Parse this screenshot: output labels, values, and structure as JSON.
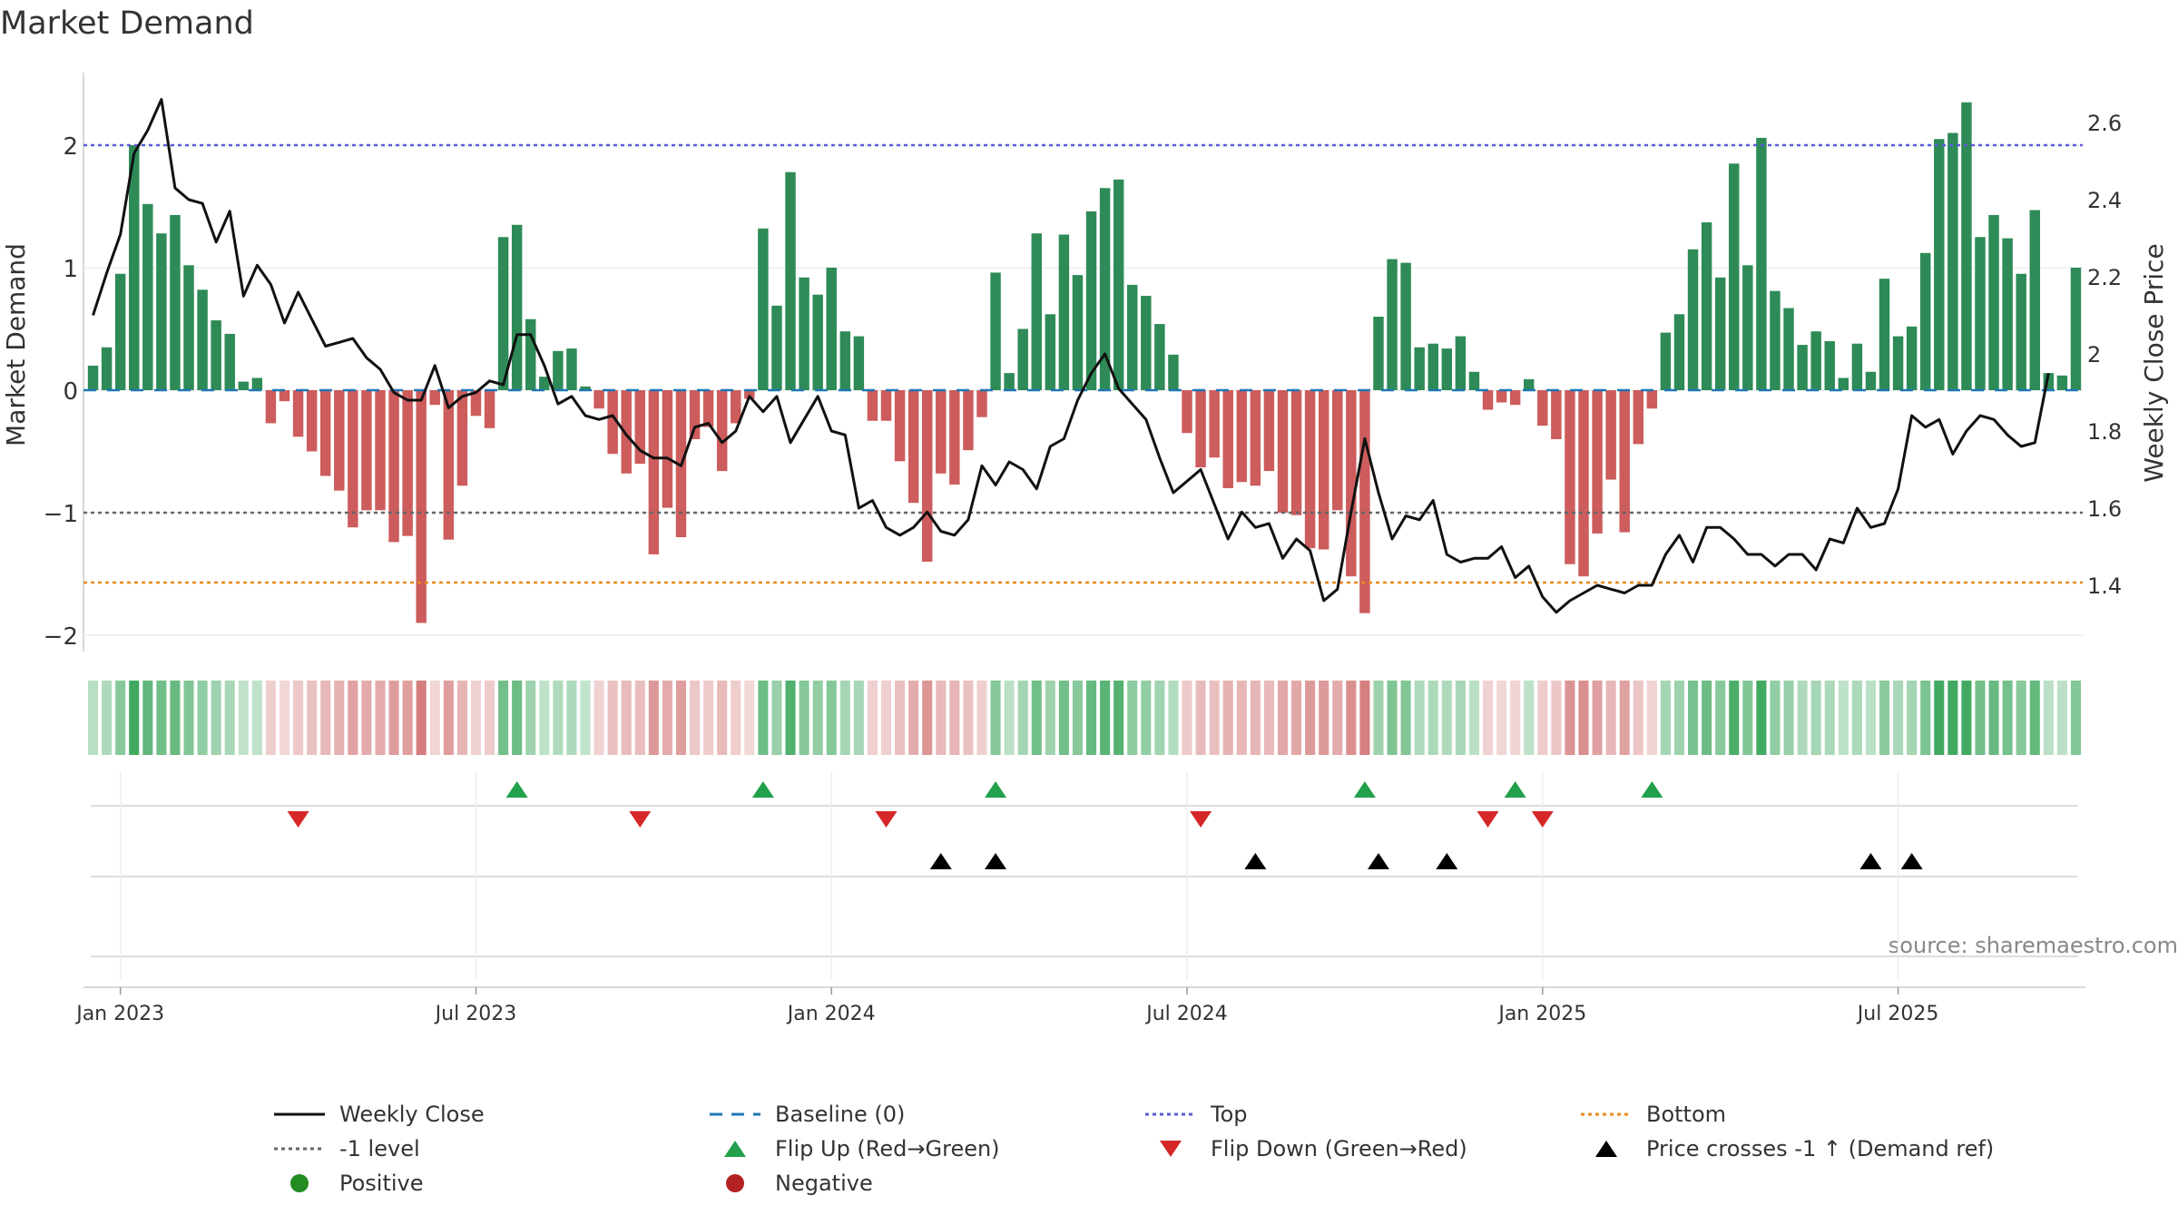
{
  "chart_data": {
    "type": "bar",
    "title": "Market Demand",
    "ylabel": "Market Demand",
    "y2label": "Weekly Close Price",
    "ylim": [
      -2.2,
      2.5
    ],
    "y2lim": [
      1.27,
      2.72
    ],
    "yticks": [
      2,
      1,
      0,
      -1,
      -2
    ],
    "ytick_labels": [
      "2",
      "1",
      "0",
      "−1",
      "−2"
    ],
    "y2ticks": [
      2.6,
      2.4,
      2.2,
      2.0,
      1.8,
      1.6,
      1.4
    ],
    "y2tick_labels": [
      "2.6",
      "2.4",
      "2.2",
      "2",
      "1.8",
      "1.6",
      "1.4"
    ],
    "xticks": [
      "Jan 2023",
      "Jul 2023",
      "Jan 2024",
      "Jul 2024",
      "Jan 2025",
      "Jul 2025"
    ],
    "xtick_weeks": [
      0,
      26,
      52,
      78,
      104,
      130
    ],
    "week_start": -2,
    "reference_lines": {
      "top": 2.0,
      "bottom": -1.57,
      "minus_one": -1.0,
      "baseline": 0
    },
    "demand": [
      0.2,
      0.35,
      0.95,
      2.0,
      1.52,
      1.28,
      1.43,
      1.02,
      0.82,
      0.57,
      0.46,
      0.07,
      0.1,
      -0.27,
      -0.09,
      -0.38,
      -0.5,
      -0.7,
      -0.82,
      -1.12,
      -0.98,
      -0.98,
      -1.24,
      -1.19,
      -1.9,
      -0.12,
      -1.22,
      -0.78,
      -0.21,
      -0.31,
      1.25,
      1.35,
      0.58,
      0.11,
      0.32,
      0.34,
      0.03,
      -0.15,
      -0.52,
      -0.68,
      -0.6,
      -1.34,
      -0.96,
      -1.2,
      -0.4,
      -0.3,
      -0.66,
      -0.27,
      -0.07,
      1.32,
      0.69,
      1.78,
      0.92,
      0.78,
      1.0,
      0.48,
      0.44,
      -0.25,
      -0.25,
      -0.58,
      -0.92,
      -1.4,
      -0.68,
      -0.77,
      -0.49,
      -0.22,
      0.96,
      0.14,
      0.5,
      1.28,
      0.62,
      1.27,
      0.94,
      1.46,
      1.65,
      1.72,
      0.86,
      0.77,
      0.54,
      0.29,
      -0.35,
      -0.63,
      -0.55,
      -0.8,
      -0.75,
      -0.78,
      -0.66,
      -1.0,
      -1.02,
      -1.29,
      -1.3,
      -0.98,
      -1.52,
      -1.82,
      0.6,
      1.07,
      1.04,
      0.35,
      0.38,
      0.34,
      0.44,
      0.15,
      -0.16,
      -0.1,
      -0.12,
      0.09,
      -0.29,
      -0.4,
      -1.42,
      -1.52,
      -1.17,
      -0.73,
      -1.16,
      -0.44,
      -0.15,
      0.47,
      0.62,
      1.15,
      1.37,
      0.92,
      1.85,
      1.02,
      2.06,
      0.81,
      0.67,
      0.37,
      0.48,
      0.4,
      0.1,
      0.38,
      0.15,
      0.91,
      0.44,
      0.52,
      1.12,
      2.05,
      2.1,
      2.35,
      1.25,
      1.43,
      1.24,
      0.95,
      1.47,
      0.14,
      0.12,
      1.0
    ],
    "close": [
      2.1,
      2.21,
      2.31,
      2.52,
      2.58,
      2.66,
      2.43,
      2.4,
      2.39,
      2.29,
      2.37,
      2.15,
      2.23,
      2.18,
      2.08,
      2.16,
      2.09,
      2.02,
      2.03,
      2.04,
      1.99,
      1.96,
      1.9,
      1.88,
      1.88,
      1.97,
      1.86,
      1.89,
      1.9,
      1.93,
      1.92,
      2.05,
      2.05,
      1.97,
      1.87,
      1.89,
      1.84,
      1.83,
      1.84,
      1.79,
      1.75,
      1.73,
      1.73,
      1.71,
      1.81,
      1.82,
      1.77,
      1.8,
      1.89,
      1.85,
      1.89,
      1.77,
      1.83,
      1.89,
      1.8,
      1.79,
      1.6,
      1.62,
      1.55,
      1.53,
      1.55,
      1.59,
      1.54,
      1.53,
      1.57,
      1.71,
      1.66,
      1.72,
      1.7,
      1.65,
      1.76,
      1.78,
      1.88,
      1.95,
      2.0,
      1.91,
      1.87,
      1.83,
      1.73,
      1.64,
      1.67,
      1.7,
      1.61,
      1.52,
      1.59,
      1.55,
      1.56,
      1.47,
      1.52,
      1.49,
      1.36,
      1.39,
      1.59,
      1.78,
      1.64,
      1.52,
      1.58,
      1.57,
      1.62,
      1.48,
      1.46,
      1.47,
      1.47,
      1.5,
      1.42,
      1.45,
      1.37,
      1.33,
      1.36,
      1.38,
      1.4,
      1.39,
      1.38,
      1.4,
      1.4,
      1.48,
      1.53,
      1.46,
      1.55,
      1.55,
      1.52,
      1.48,
      1.48,
      1.45,
      1.48,
      1.48,
      1.44,
      1.52,
      1.51,
      1.6,
      1.55,
      1.56,
      1.65,
      1.84,
      1.81,
      1.83,
      1.74,
      1.8,
      1.84,
      1.83,
      1.79,
      1.76,
      1.77,
      1.95
    ],
    "flip_up_weeks": [
      29,
      47,
      64,
      91,
      102,
      112
    ],
    "flip_down_weeks": [
      13,
      38,
      56,
      79,
      100,
      104
    ],
    "price_cross_weeks": [
      60,
      64,
      83,
      92,
      97,
      128,
      131
    ],
    "source": "source: sharemaestro.com",
    "legend": [
      {
        "label": "Weekly Close",
        "symbol": "line-solid",
        "color": "#111111"
      },
      {
        "label": "Baseline (0)",
        "symbol": "line-dash",
        "color": "#1f77b4"
      },
      {
        "label": "Top",
        "symbol": "line-dot",
        "color": "#5b5bd6"
      },
      {
        "label": "Bottom",
        "symbol": "line-dot",
        "color": "#e8891e"
      },
      {
        "label": "-1 level",
        "symbol": "line-dot",
        "color": "#666666"
      },
      {
        "label": "Flip Up (Red→Green)",
        "symbol": "tri-up",
        "color": "#22a04b"
      },
      {
        "label": "Flip Down (Green→Red)",
        "symbol": "tri-down",
        "color": "#d62728"
      },
      {
        "label": "Price crosses -1 ↑ (Demand ref)",
        "symbol": "tri-up",
        "color": "#000000"
      },
      {
        "label": "Positive",
        "symbol": "dot",
        "color": "#228b22"
      },
      {
        "label": "Negative",
        "symbol": "dot",
        "color": "#b22222"
      }
    ],
    "colors": {
      "positive": "#2e8b57",
      "negative": "#cd5c5c",
      "close": "#111111"
    }
  }
}
